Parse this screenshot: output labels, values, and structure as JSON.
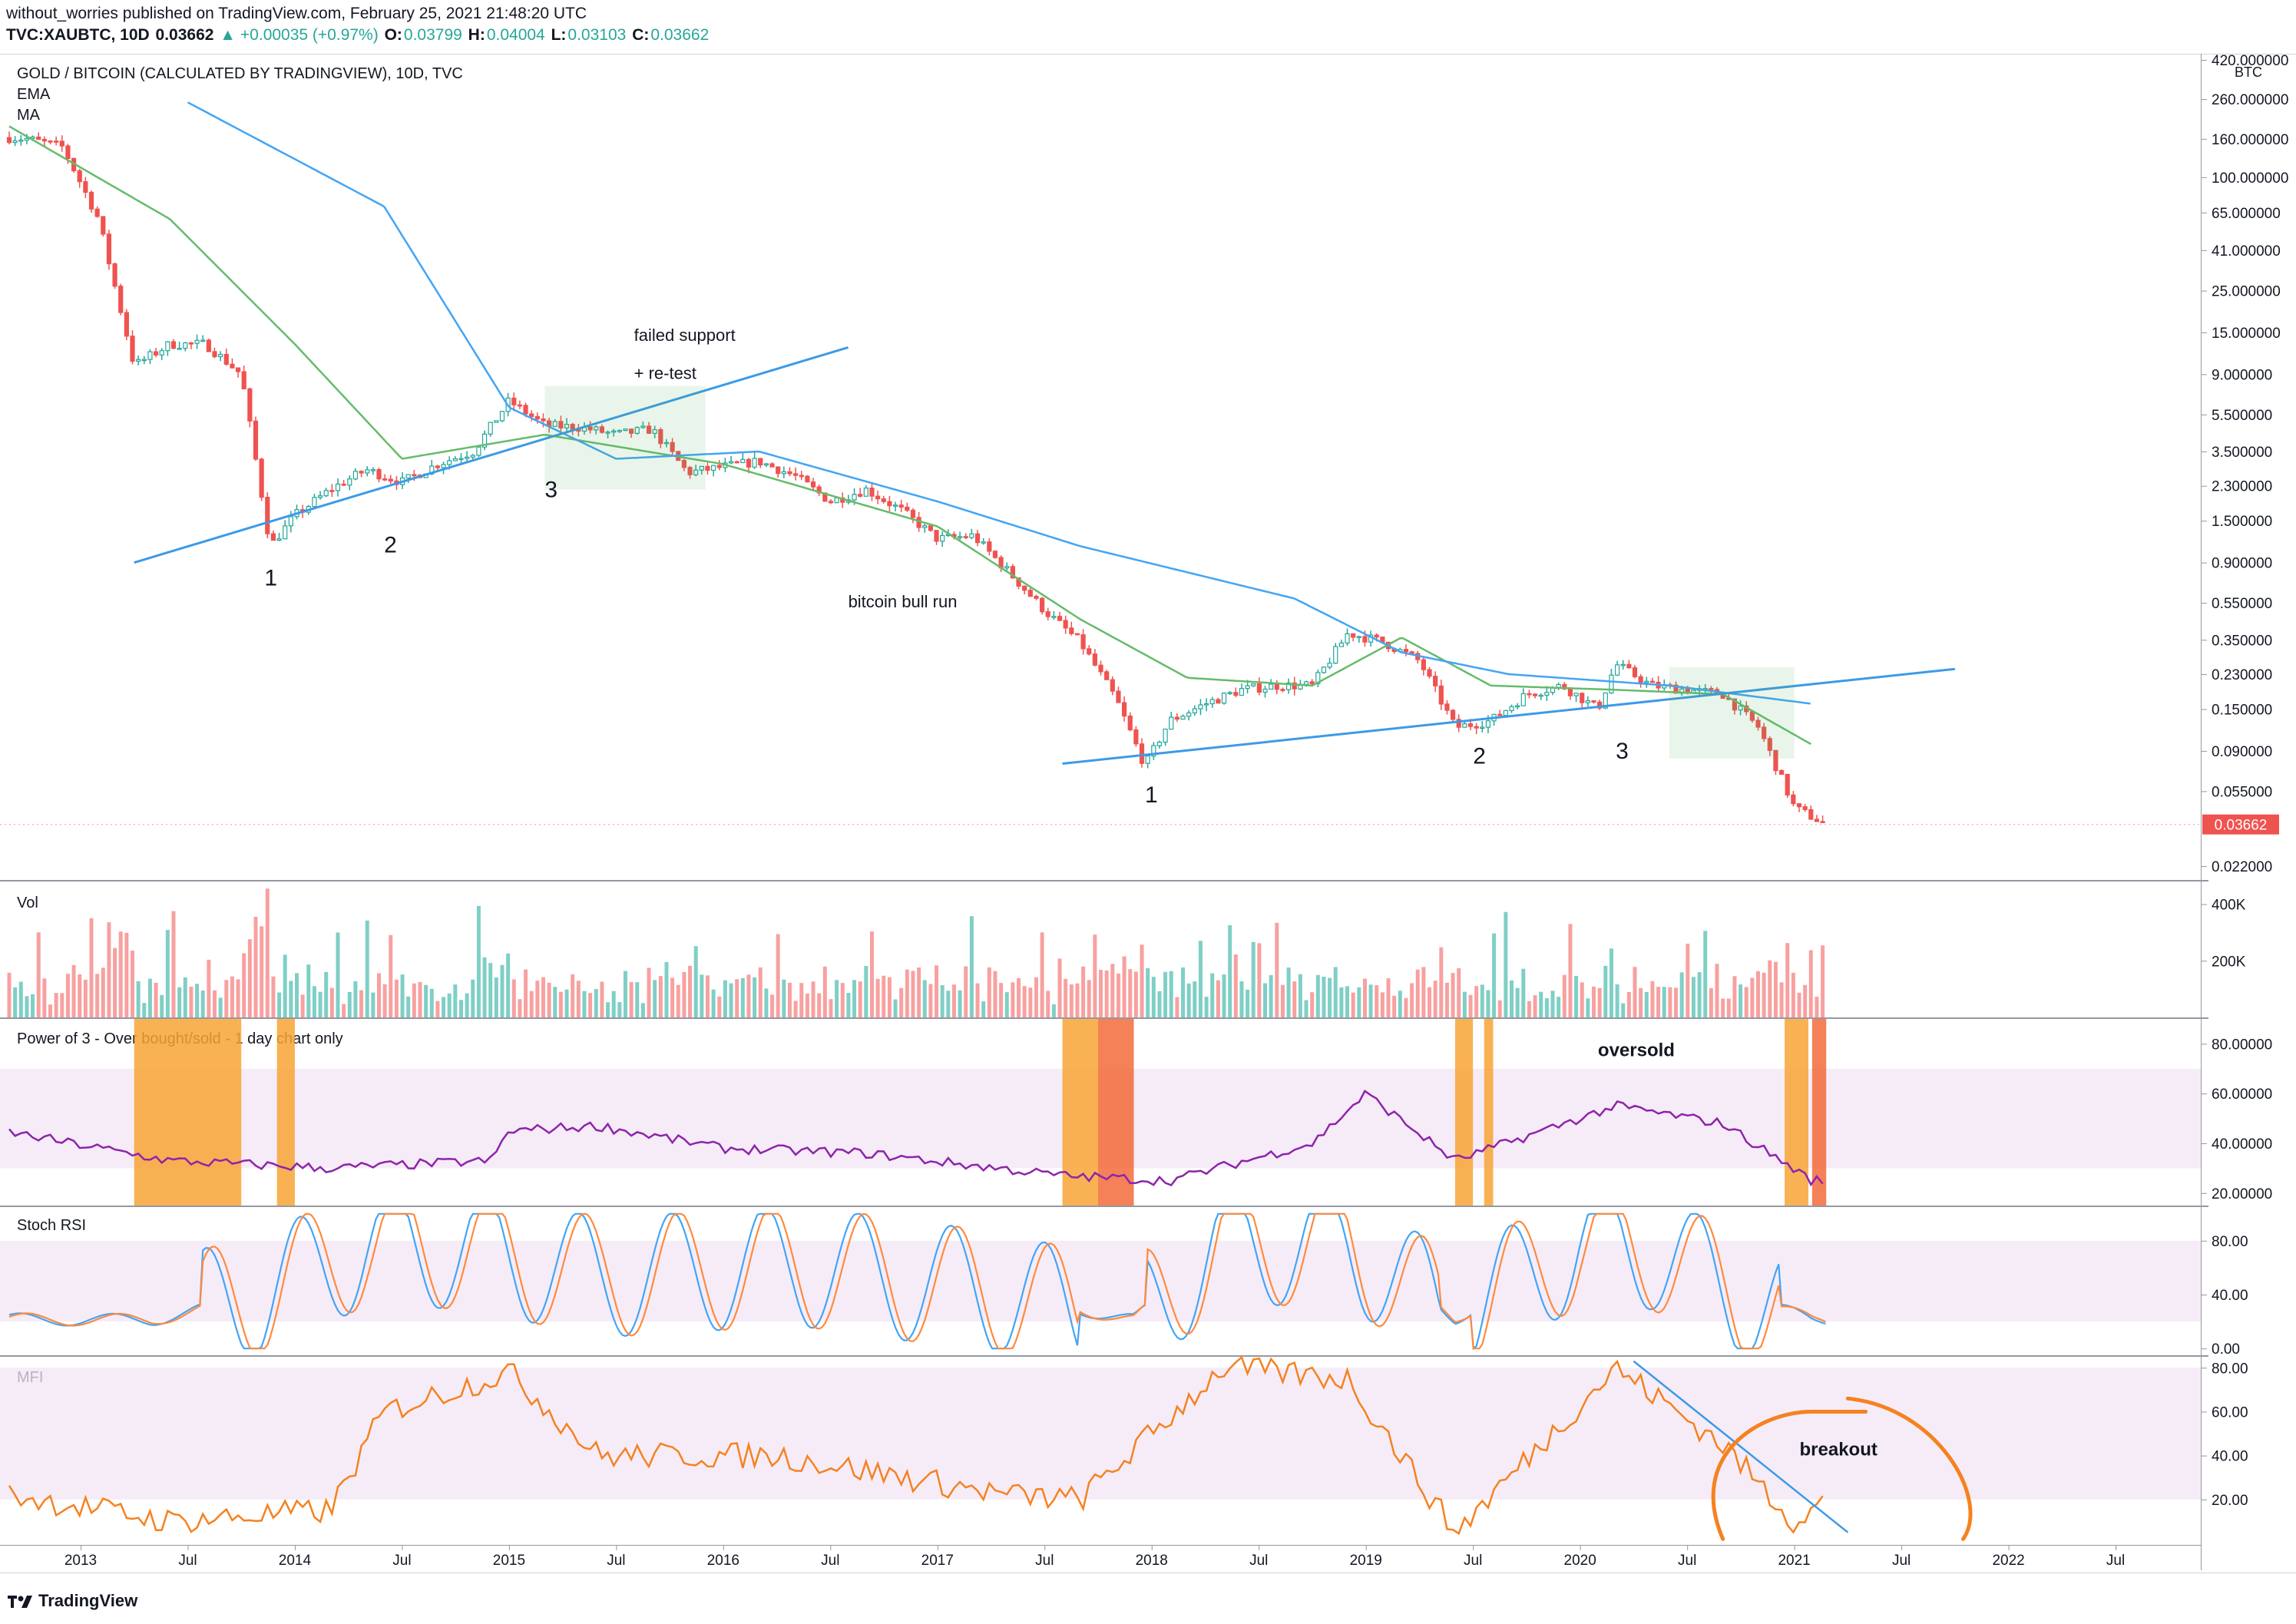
{
  "header": {
    "publisher": "without_worries published on TradingView.com, February 25, 2021 21:48:20 UTC",
    "symbol": "TVC:XAUBTC, 10D",
    "last": "0.03662",
    "change": "▲ +0.00035 (+0.97%)",
    "open_label": "O:",
    "open": "0.03799",
    "high_label": "H:",
    "high": "0.04004",
    "low_label": "L:",
    "low": "0.03103",
    "close_label": "C:",
    "close": "0.03662"
  },
  "main_pane": {
    "title": "GOLD / BITCOIN (CALCULATED BY TRADINGVIEW), 10D, TVC",
    "legend": [
      "EMA",
      "MA"
    ],
    "unit": "BTC",
    "price_labels": [
      "420.000000",
      "260.000000",
      "160.000000",
      "100.000000",
      "65.000000",
      "41.000000",
      "25.000000",
      "15.000000",
      "9.000000",
      "5.500000",
      "3.500000",
      "2.300000",
      "1.500000",
      "0.900000",
      "0.550000",
      "0.350000",
      "0.230000",
      "0.150000",
      "0.090000",
      "0.055000",
      "0.022000"
    ],
    "last_price_badge": "0.03662",
    "annotations": {
      "failed_support": "failed support",
      "retest": "+ re-test",
      "bull_run": "bitcoin bull run",
      "left_1": "1",
      "left_2": "2",
      "left_3": "3",
      "right_1": "1",
      "right_2": "2",
      "right_3": "3"
    }
  },
  "vol_pane": {
    "title": "Vol",
    "labels": [
      "400K",
      "200K"
    ]
  },
  "power_pane": {
    "title": "Power of 3 - Over bought/sold - 1 day chart only",
    "labels": [
      "80.00000",
      "60.00000",
      "40.00000",
      "20.00000"
    ],
    "annotation": "oversold"
  },
  "stoch_pane": {
    "title": "Stoch RSI",
    "labels": [
      "80.00",
      "40.00",
      "0.00"
    ]
  },
  "mfi_pane": {
    "title": "MFI",
    "labels": [
      "80.00",
      "60.00",
      "40.00",
      "20.00"
    ],
    "annotation": "breakout"
  },
  "time_axis": [
    "2013",
    "Jul",
    "2014",
    "Jul",
    "2015",
    "Jul",
    "2016",
    "Jul",
    "2017",
    "Jul",
    "2018",
    "Jul",
    "2019",
    "Jul",
    "2020",
    "Jul",
    "2021",
    "Jul",
    "2022",
    "Jul"
  ],
  "footer": {
    "brand": "TradingView"
  },
  "colors": {
    "up": "#26a69a",
    "down": "#ef5350",
    "up_vol": "#7fcfc6",
    "down_vol": "#f7a1a0",
    "ema": "#66bb6a",
    "ma": "#42a5f5",
    "trendline": "#3c9ae8",
    "power_line": "#8e24aa",
    "orange_band": "#f7a535",
    "red_band": "#f26b3a",
    "stoch_k": "#42a5f5",
    "stoch_d": "#ff8a3d",
    "mfi": "#f58220",
    "band_fill": "#f3e5f5"
  },
  "chart_data": [
    {
      "type": "candlestick",
      "title": "GOLD / BITCOIN (CALCULATED BY TRADINGVIEW), 10D, TVC",
      "scale": "log",
      "ylim": [
        0.02,
        420
      ],
      "x_range": [
        "2012-07",
        "2022-11"
      ],
      "note": "10-day candles; anchor closes approximated from chart",
      "close_path": [
        {
          "date": "2012-08",
          "close": 165
        },
        {
          "date": "2012-10",
          "close": 160
        },
        {
          "date": "2012-12",
          "close": 145
        },
        {
          "date": "2013-02",
          "close": 60
        },
        {
          "date": "2013-04",
          "close": 10
        },
        {
          "date": "2013-06",
          "close": 13
        },
        {
          "date": "2013-08",
          "close": 13
        },
        {
          "date": "2013-10",
          "close": 9
        },
        {
          "date": "2013-11-20",
          "close": 1.1
        },
        {
          "date": "2014-01",
          "close": 1.6
        },
        {
          "date": "2014-03",
          "close": 2.2
        },
        {
          "date": "2014-05",
          "close": 2.8
        },
        {
          "date": "2014-07",
          "close": 2.4
        },
        {
          "date": "2014-09",
          "close": 3.0
        },
        {
          "date": "2014-11",
          "close": 3.5
        },
        {
          "date": "2015-01",
          "close": 6.5
        },
        {
          "date": "2015-03",
          "close": 4.8
        },
        {
          "date": "2015-05",
          "close": 4.7
        },
        {
          "date": "2015-07",
          "close": 4.3
        },
        {
          "date": "2015-09",
          "close": 4.6
        },
        {
          "date": "2015-11",
          "close": 2.7
        },
        {
          "date": "2016-01",
          "close": 2.9
        },
        {
          "date": "2016-03",
          "close": 3.1
        },
        {
          "date": "2016-05",
          "close": 2.6
        },
        {
          "date": "2016-07",
          "close": 1.9
        },
        {
          "date": "2016-09",
          "close": 2.2
        },
        {
          "date": "2016-11",
          "close": 1.7
        },
        {
          "date": "2017-01",
          "close": 1.2
        },
        {
          "date": "2017-03",
          "close": 1.25
        },
        {
          "date": "2017-05",
          "close": 0.8
        },
        {
          "date": "2017-07",
          "close": 0.5
        },
        {
          "date": "2017-09",
          "close": 0.34
        },
        {
          "date": "2017-11",
          "close": 0.17
        },
        {
          "date": "2017-12-20",
          "close": 0.075
        },
        {
          "date": "2018-02",
          "close": 0.13
        },
        {
          "date": "2018-04",
          "close": 0.16
        },
        {
          "date": "2018-06",
          "close": 0.19
        },
        {
          "date": "2018-08",
          "close": 0.2
        },
        {
          "date": "2018-10",
          "close": 0.2
        },
        {
          "date": "2018-12",
          "close": 0.38
        },
        {
          "date": "2019-02",
          "close": 0.34
        },
        {
          "date": "2019-04",
          "close": 0.27
        },
        {
          "date": "2019-06",
          "close": 0.12
        },
        {
          "date": "2019-08",
          "close": 0.13
        },
        {
          "date": "2019-10",
          "close": 0.18
        },
        {
          "date": "2019-12",
          "close": 0.2
        },
        {
          "date": "2020-02",
          "close": 0.15
        },
        {
          "date": "2020-03",
          "close": 0.26
        },
        {
          "date": "2020-05",
          "close": 0.2
        },
        {
          "date": "2020-07",
          "close": 0.19
        },
        {
          "date": "2020-09",
          "close": 0.18
        },
        {
          "date": "2020-11",
          "close": 0.12
        },
        {
          "date": "2021-01",
          "close": 0.045
        },
        {
          "date": "2021-02-25",
          "close": 0.03662
        }
      ]
    },
    {
      "type": "line",
      "name": "EMA",
      "anchors": [
        {
          "date": "2012-07",
          "close": 240
        },
        {
          "date": "2013-06",
          "close": 60
        },
        {
          "date": "2014-01",
          "close": 13
        },
        {
          "date": "2014-07",
          "close": 3.2
        },
        {
          "date": "2015-03",
          "close": 4.3
        },
        {
          "date": "2016-01",
          "close": 3.0
        },
        {
          "date": "2017-01",
          "close": 1.4
        },
        {
          "date": "2017-09",
          "close": 0.45
        },
        {
          "date": "2018-03",
          "close": 0.22
        },
        {
          "date": "2018-10",
          "close": 0.2
        },
        {
          "date": "2019-03",
          "close": 0.36
        },
        {
          "date": "2019-08",
          "close": 0.2
        },
        {
          "date": "2020-03",
          "close": 0.19
        },
        {
          "date": "2020-09",
          "close": 0.18
        },
        {
          "date": "2021-02",
          "close": 0.097
        }
      ]
    },
    {
      "type": "line",
      "name": "MA",
      "anchors": [
        {
          "date": "2013-07",
          "close": 250
        },
        {
          "date": "2014-06",
          "close": 70
        },
        {
          "date": "2015-01",
          "close": 6.0
        },
        {
          "date": "2015-07",
          "close": 3.2
        },
        {
          "date": "2016-03",
          "close": 3.5
        },
        {
          "date": "2017-01",
          "close": 1.9
        },
        {
          "date": "2017-09",
          "close": 1.1
        },
        {
          "date": "2018-09",
          "close": 0.58
        },
        {
          "date": "2019-03",
          "close": 0.3
        },
        {
          "date": "2019-09",
          "close": 0.23
        },
        {
          "date": "2020-06",
          "close": 0.2
        },
        {
          "date": "2021-02",
          "close": 0.16
        }
      ]
    },
    {
      "type": "bar",
      "name": "Vol",
      "ylim": [
        0,
        400000
      ]
    },
    {
      "type": "line",
      "name": "Power of 3",
      "ylim": [
        15,
        90
      ],
      "band": [
        30,
        70
      ],
      "oversold_zones": [
        [
          "2013-04",
          "2013-10"
        ],
        [
          "2013-12",
          "2014-01"
        ],
        [
          "2017-08",
          "2017-10"
        ],
        [
          "2017-10",
          "2017-12"
        ],
        [
          "2019-06",
          "2019-07"
        ],
        [
          "2019-07-20",
          "2019-08-05"
        ],
        [
          "2020-12-15",
          "2021-01-25"
        ],
        [
          "2021-02-01",
          "2021-02-25"
        ]
      ],
      "anchors": [
        {
          "date": "2012-07",
          "value": 47
        },
        {
          "date": "2013-06",
          "value": 33
        },
        {
          "date": "2014-03",
          "value": 30
        },
        {
          "date": "2014-12",
          "value": 33
        },
        {
          "date": "2015-01",
          "value": 45
        },
        {
          "date": "2015-06",
          "value": 47
        },
        {
          "date": "2016-01",
          "value": 38
        },
        {
          "date": "2016-09",
          "value": 36
        },
        {
          "date": "2017-08",
          "value": 27
        },
        {
          "date": "2018-02",
          "value": 25
        },
        {
          "date": "2018-10",
          "value": 40
        },
        {
          "date": "2019-01",
          "value": 60
        },
        {
          "date": "2019-06",
          "value": 33
        },
        {
          "date": "2020-03",
          "value": 55
        },
        {
          "date": "2020-09",
          "value": 48
        },
        {
          "date": "2021-02",
          "value": 25
        }
      ]
    },
    {
      "type": "line",
      "name": "Stoch RSI",
      "ylim": [
        -5,
        105
      ],
      "band": [
        20,
        80
      ],
      "series": [
        {
          "name": "K",
          "anchors": [
            {
              "date": "2012-07",
              "value": 3
            },
            {
              "date": "2013-05",
              "value": 2
            },
            {
              "date": "2013-11",
              "value": 30
            },
            {
              "date": "2014-05",
              "value": 95
            },
            {
              "date": "2014-11",
              "value": 90
            },
            {
              "date": "2015-06",
              "value": 55
            },
            {
              "date": "2016-05",
              "value": 70
            },
            {
              "date": "2017-03",
              "value": 40
            },
            {
              "date": "2017-12",
              "value": 2
            },
            {
              "date": "2018-05",
              "value": 95
            },
            {
              "date": "2018-12",
              "value": 95
            },
            {
              "date": "2019-06",
              "value": 3
            },
            {
              "date": "2020-01",
              "value": 95
            },
            {
              "date": "2020-05",
              "value": 90
            },
            {
              "date": "2020-10",
              "value": 30
            },
            {
              "date": "2021-02",
              "value": 3
            }
          ]
        }
      ]
    },
    {
      "type": "line",
      "name": "MFI",
      "ylim": [
        0,
        85
      ],
      "band": [
        20,
        80
      ],
      "anchors": [
        {
          "date": "2012-07",
          "value": 25
        },
        {
          "date": "2013-06",
          "value": 10
        },
        {
          "date": "2014-03",
          "value": 15
        },
        {
          "date": "2014-06",
          "value": 60
        },
        {
          "date": "2015-01",
          "value": 78
        },
        {
          "date": "2015-06",
          "value": 40
        },
        {
          "date": "2016-04",
          "value": 40
        },
        {
          "date": "2017-05",
          "value": 22
        },
        {
          "date": "2017-09",
          "value": 20
        },
        {
          "date": "2018-05",
          "value": 80
        },
        {
          "date": "2018-12",
          "value": 75
        },
        {
          "date": "2019-06",
          "value": 5
        },
        {
          "date": "2020-03",
          "value": 80
        },
        {
          "date": "2020-09",
          "value": 45
        },
        {
          "date": "2021-01",
          "value": 10
        },
        {
          "date": "2021-02-25",
          "value": 20
        }
      ]
    }
  ]
}
